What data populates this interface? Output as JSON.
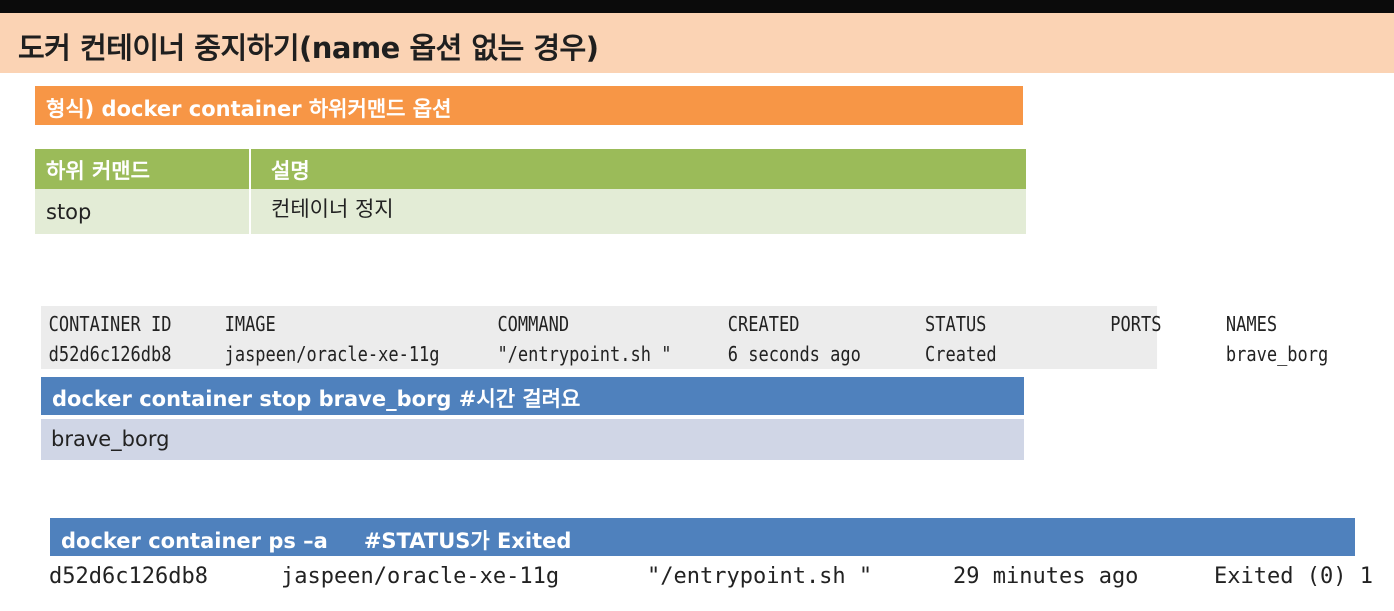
{
  "slide": {
    "title": "도커 컨테이너 중지하기(name 옵션 없는 경우)",
    "format": "형식) docker container 하위커맨드 옵션",
    "table": {
      "headers": [
        "하위 커맨드",
        "설명"
      ],
      "rows": [
        [
          "stop",
          "컨테이너 정지"
        ]
      ]
    },
    "ps_output": {
      "headers": [
        "CONTAINER ID",
        "IMAGE",
        "COMMAND",
        "CREATED",
        "STATUS",
        "PORTS",
        "NAMES"
      ],
      "row": [
        "d52d6c126db8",
        "jaspeen/oracle-xe-11g",
        "\"/entrypoint.sh \"",
        "6 seconds ago",
        "Created",
        "",
        "brave_borg"
      ]
    },
    "stop_command": "docker container stop brave_borg #시간 걸려요",
    "stop_output": "brave_borg",
    "ps_command": {
      "command": "docker container ps –a",
      "comment": "#STATUS가 Exited"
    },
    "ps_after": [
      "d52d6c126db8",
      "jaspeen/oracle-xe-11g",
      "\"/entrypoint.sh \"",
      "29 minutes ago",
      "Exited (0) 1"
    ]
  }
}
